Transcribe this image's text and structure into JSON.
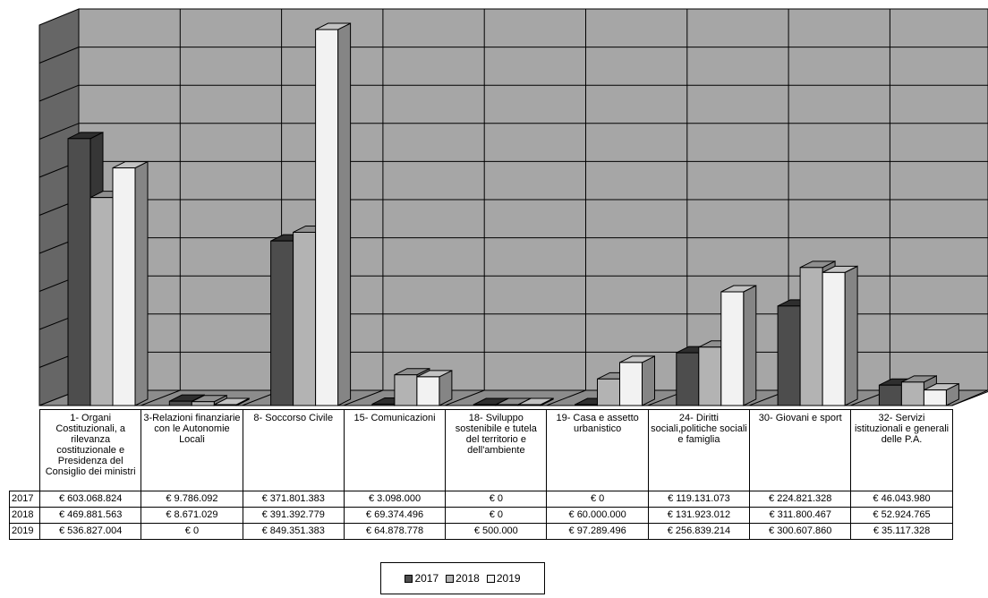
{
  "chart_data": {
    "type": "bar",
    "categories": [
      "1- Organi Costituzionali, a rilevanza costituzionale e Presidenza del Consiglio dei ministri",
      "3-Relazioni finanziarie con le Autonomie Locali",
      "8- Soccorso Civile",
      "15- Comunicazioni",
      "18- Sviluppo sostenibile e tutela del territorio e dell'ambiente",
      "19- Casa e assetto urbanistico",
      "24- Diritti sociali,politiche sociali e famiglia",
      "30- Giovani e sport",
      "32- Servizi istituzionali e generali delle P.A."
    ],
    "series": [
      {
        "name": "2017",
        "color": "#4d4d4d",
        "values": [
          603068824,
          9786092,
          371801383,
          3098000,
          0,
          0,
          119131073,
          224821328,
          46043980
        ],
        "labels": [
          "€ 603.068.824",
          "€ 9.786.092",
          "€ 371.801.383",
          "€ 3.098.000",
          "€ 0",
          "€ 0",
          "€ 119.131.073",
          "€ 224.821.328",
          "€ 46.043.980"
        ]
      },
      {
        "name": "2018",
        "color": "#b3b3b3",
        "values": [
          469881563,
          8671029,
          391392779,
          69374496,
          0,
          60000000,
          131923012,
          311800467,
          52924765
        ],
        "labels": [
          "€ 469.881.563",
          "€ 8.671.029",
          "€ 391.392.779",
          "€ 69.374.496",
          "€ 0",
          "€ 60.000.000",
          "€ 131.923.012",
          "€ 311.800.467",
          "€ 52.924.765"
        ]
      },
      {
        "name": "2019",
        "color": "#f2f2f2",
        "values": [
          536827004,
          0,
          849351383,
          64878778,
          500000,
          97289496,
          256839214,
          300607860,
          35117328
        ],
        "labels": [
          "€ 536.827.004",
          "€ 0",
          "€ 849.351.383",
          "€ 64.878.778",
          "€ 500.000",
          "€ 97.289.496",
          "€ 256.839.214",
          "€ 300.607.860",
          "€ 35.117.328"
        ]
      }
    ],
    "ylim": [
      0,
      900000000
    ],
    "grid": true,
    "legend_position": "bottom"
  }
}
